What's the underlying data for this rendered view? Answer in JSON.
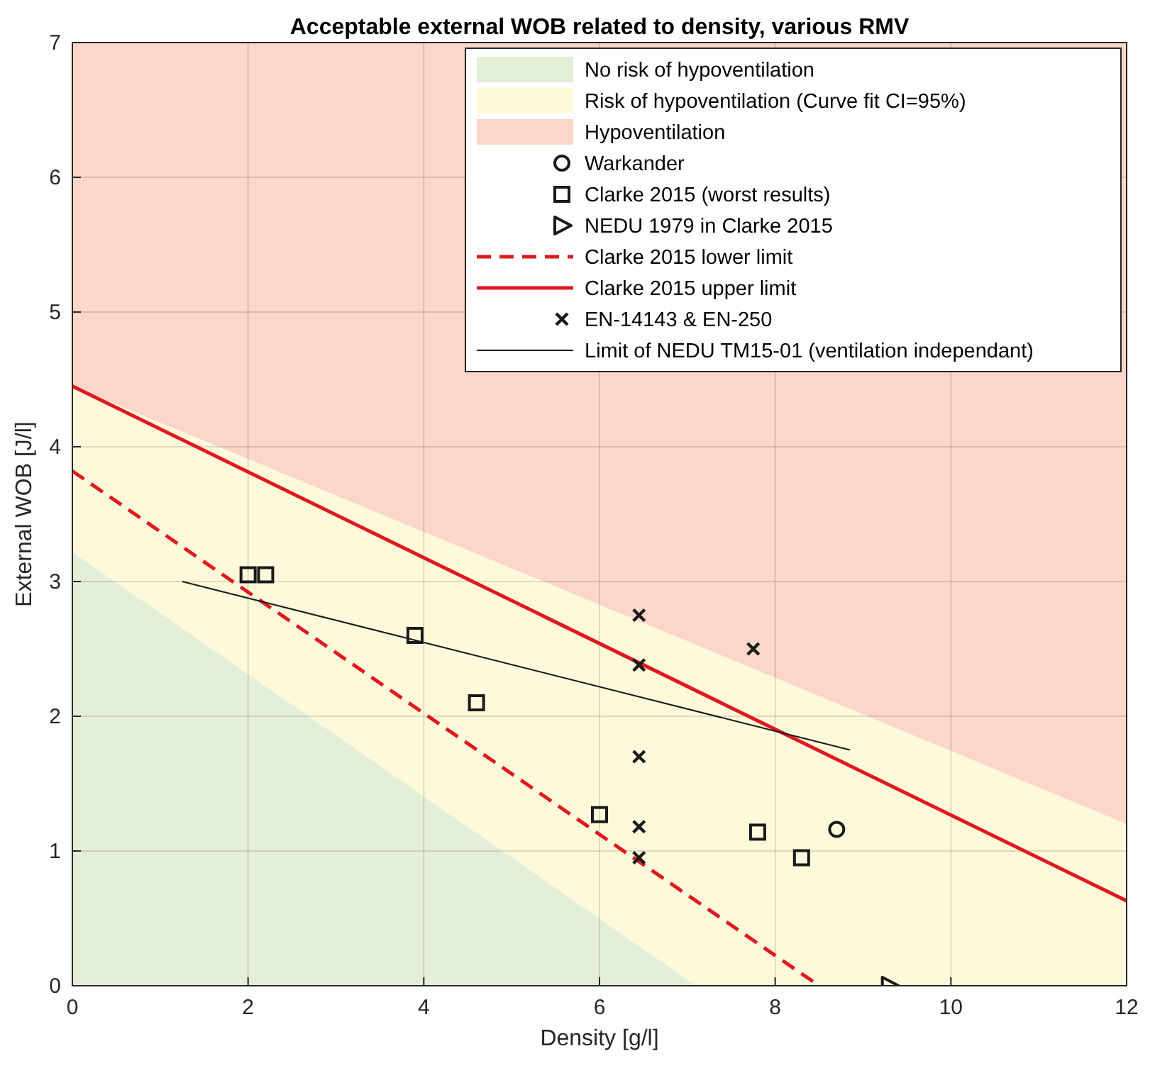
{
  "chart_data": {
    "type": "scatter",
    "title": "Acceptable external WOB related to density, various RMV",
    "xlabel": "Density [g/l]",
    "ylabel": "External WOB [J/l]",
    "xlim": [
      0,
      12
    ],
    "ylim": [
      0,
      7
    ],
    "xticks": [
      0,
      2,
      4,
      6,
      8,
      10,
      12
    ],
    "yticks": [
      0,
      1,
      2,
      3,
      4,
      5,
      6,
      7
    ],
    "grid": true,
    "legend": "top right",
    "stacked": true,
    "series": [
      {
        "name": "No risk of hypoventilation",
        "type": "area",
        "color": "#e4efd8",
        "x": [
          0,
          7.1,
          12
        ],
        "values": [
          3.22,
          0,
          0
        ]
      },
      {
        "name": "Risk of hypoventilation (Curve fit CI=95%)",
        "type": "area",
        "color": "#fdf9da",
        "x": [
          0,
          7.1,
          12
        ],
        "values": [
          1.23,
          2.53,
          1.2
        ]
      },
      {
        "name": "Hypoventilation",
        "type": "area",
        "color": "#fbd6c9",
        "x": [
          0,
          7.1,
          12
        ],
        "values": [
          2.55,
          4.47,
          5.8
        ]
      },
      {
        "name": "Warkander",
        "marker": "circle",
        "color": "#1a1a1a",
        "x": [
          8.7
        ],
        "values": [
          1.16
        ]
      },
      {
        "name": "Clarke 2015 (worst results)",
        "marker": "square",
        "color": "#1a1a1a",
        "x": [
          2.0,
          2.2,
          3.9,
          4.6,
          6.0,
          7.8,
          8.3
        ],
        "values": [
          3.05,
          3.05,
          2.6,
          2.1,
          1.27,
          1.14,
          0.95
        ]
      },
      {
        "name": "NEDU 1979 in Clarke 2015",
        "marker": "triangle",
        "color": "#1a1a1a",
        "x": [
          9.3
        ],
        "values": [
          0
        ]
      },
      {
        "name": "Clarke 2015 lower limit",
        "type": "line",
        "line_style": "dashed",
        "color": "#e0191f",
        "x": [
          0,
          8.5
        ],
        "values": [
          3.82,
          0
        ]
      },
      {
        "name": "Clarke 2015 upper limit",
        "type": "line",
        "line_style": "solid",
        "color": "#e0191f",
        "x": [
          0,
          12
        ],
        "values": [
          4.45,
          0.63
        ]
      },
      {
        "name": "EN-14143 & EN-250",
        "marker": "cross",
        "color": "#1a1a1a",
        "x": [
          6.45,
          6.45,
          6.45,
          6.45,
          6.45,
          7.75
        ],
        "values": [
          2.75,
          2.38,
          1.7,
          1.18,
          0.95,
          2.5
        ]
      },
      {
        "name": "Limit of NEDU TM15-01 (ventilation independant)",
        "type": "line",
        "line_style": "solid",
        "color": "#1a1a1a",
        "x": [
          1.25,
          8.85
        ],
        "values": [
          3.0,
          1.75
        ]
      }
    ]
  }
}
